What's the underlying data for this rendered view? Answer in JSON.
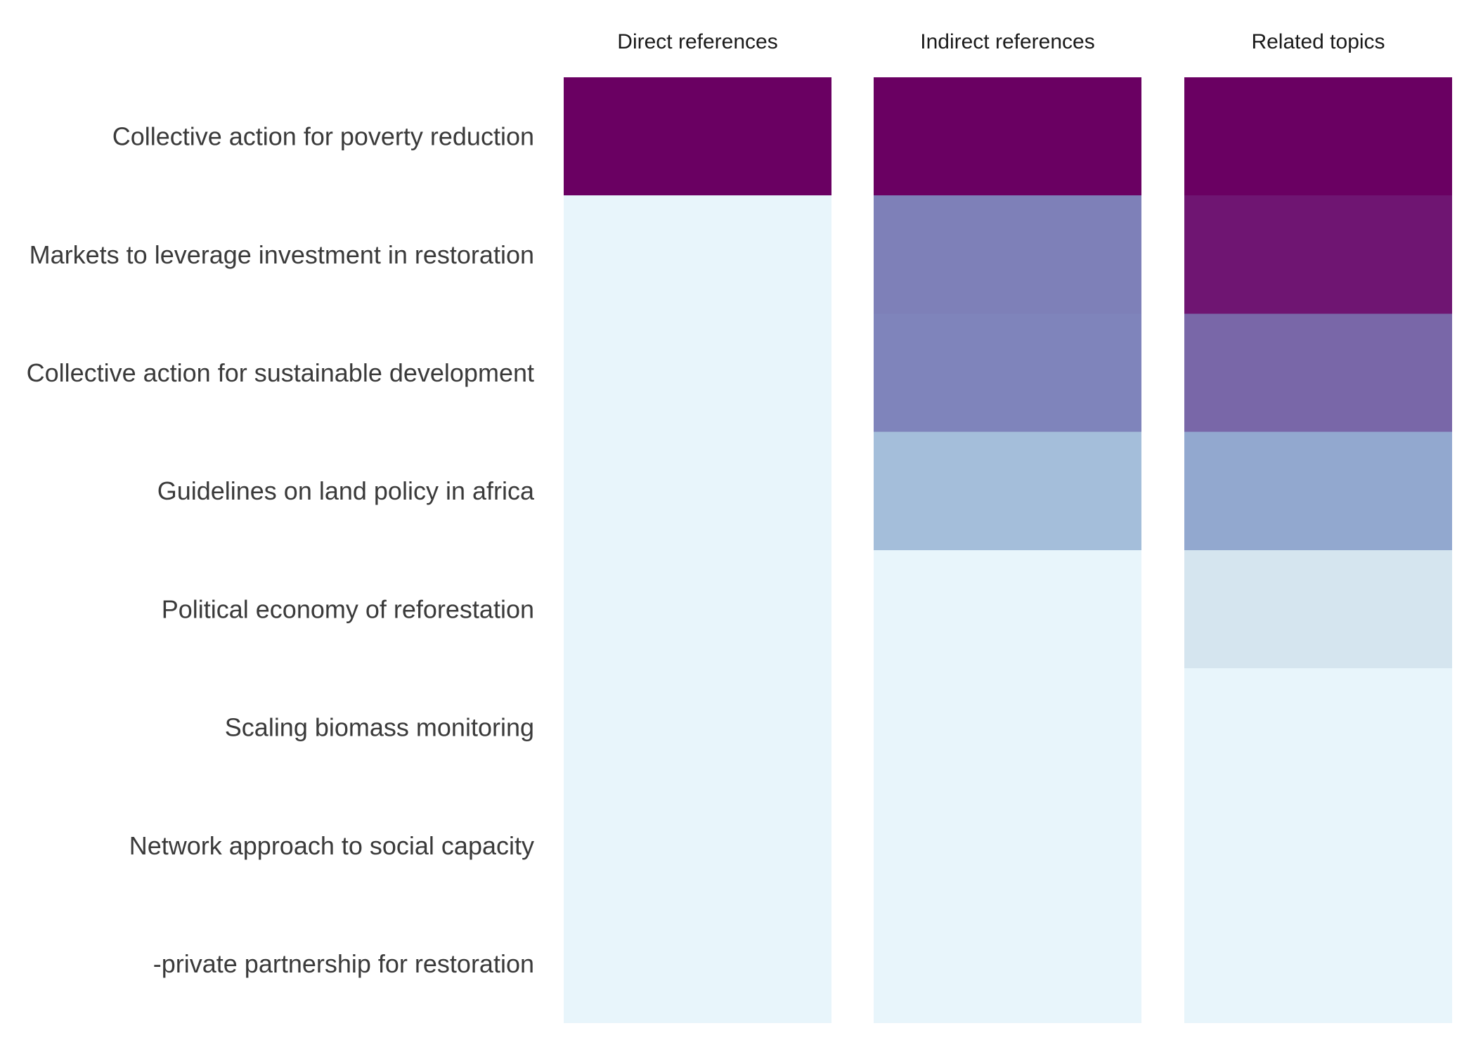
{
  "chart_data": {
    "type": "heatmap",
    "columns": [
      "Direct references",
      "Indirect references",
      "Related topics"
    ],
    "rows": [
      "Collective action for poverty reduction",
      "Markets to leverage investment in restoration",
      "Collective action for sustainable development",
      "Guidelines on land policy in africa",
      "Political economy of reforestation",
      "Scaling biomass monitoring",
      "Network approach to social capacity",
      "-private partnership for restoration"
    ],
    "values": [
      [
        1.0,
        1.0,
        1.0
      ],
      [
        0.0,
        0.62,
        0.9
      ],
      [
        0.0,
        0.6,
        0.7
      ],
      [
        0.0,
        0.32,
        0.42
      ],
      [
        0.0,
        0.0,
        0.15
      ],
      [
        0.0,
        0.0,
        0.0
      ],
      [
        0.0,
        0.0,
        0.0
      ],
      [
        0.0,
        0.0,
        0.0
      ]
    ],
    "colors": {
      "low": "#e8f5fb",
      "high": "#6a0062"
    },
    "colorscale": [
      "#e8f5fb",
      "#d3e3ee",
      "#a0bbd8",
      "#8596c6",
      "#7b78b3",
      "#73237c",
      "#6a0062"
    ]
  }
}
